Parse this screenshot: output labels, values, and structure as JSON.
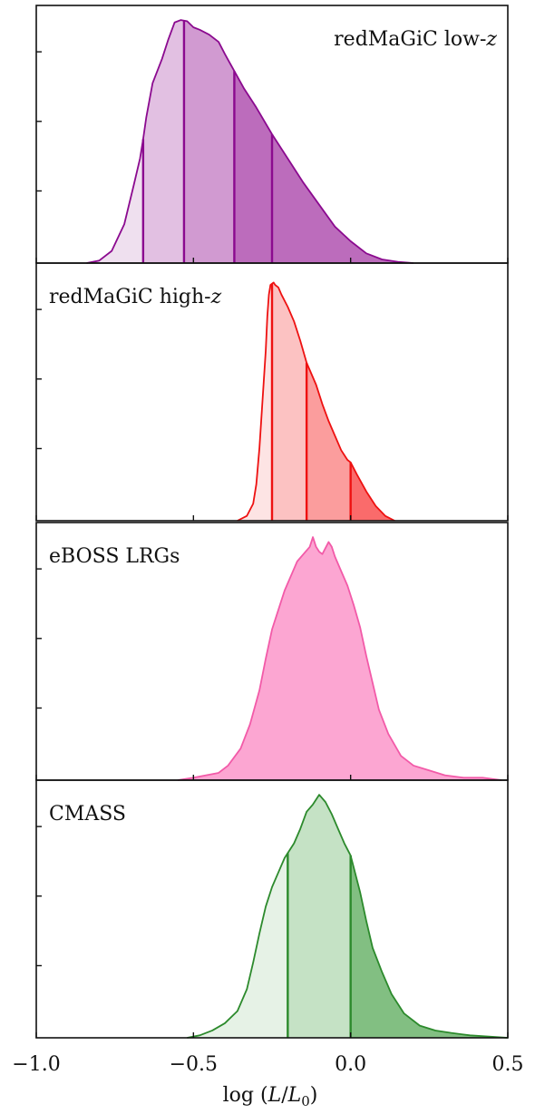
{
  "chart_data": [
    {
      "type": "area",
      "label": "redMaGiC low-z",
      "label_main": "redMaGiC low-",
      "label_var": "z",
      "label_position": "top-right",
      "stroke": "#8b0a8f",
      "fills": [
        "#efe0ef",
        "#e2c0e2",
        "#d19ad1",
        "#bc6cbc"
      ],
      "bin_edges": [
        -0.66,
        -0.53,
        -0.37,
        -0.25
      ],
      "curve": [
        [
          -0.84,
          0.0
        ],
        [
          -0.8,
          0.01
        ],
        [
          -0.76,
          0.05
        ],
        [
          -0.72,
          0.16
        ],
        [
          -0.69,
          0.32
        ],
        [
          -0.67,
          0.43
        ],
        [
          -0.66,
          0.51
        ],
        [
          -0.65,
          0.6
        ],
        [
          -0.63,
          0.74
        ],
        [
          -0.6,
          0.84
        ],
        [
          -0.58,
          0.92
        ],
        [
          -0.56,
          0.99
        ],
        [
          -0.54,
          1.0
        ],
        [
          -0.52,
          0.995
        ],
        [
          -0.5,
          0.97
        ],
        [
          -0.48,
          0.96
        ],
        [
          -0.45,
          0.94
        ],
        [
          -0.42,
          0.91
        ],
        [
          -0.4,
          0.86
        ],
        [
          -0.37,
          0.79
        ],
        [
          -0.34,
          0.72
        ],
        [
          -0.3,
          0.64
        ],
        [
          -0.25,
          0.53
        ],
        [
          -0.2,
          0.43
        ],
        [
          -0.15,
          0.33
        ],
        [
          -0.1,
          0.24
        ],
        [
          -0.05,
          0.15
        ],
        [
          0.0,
          0.09
        ],
        [
          0.05,
          0.04
        ],
        [
          0.1,
          0.015
        ],
        [
          0.15,
          0.005
        ],
        [
          0.2,
          0.0
        ]
      ],
      "ymax": 1.06
    },
    {
      "type": "area",
      "label": "redMaGiC high-z",
      "label_main": "redMaGiC high-",
      "label_var": "z",
      "label_position": "top-left",
      "stroke": "#ee1111",
      "fills": [
        "#fde4e4",
        "#fcc2c2",
        "#fb9d9d",
        "#fa6b6b"
      ],
      "bin_edges": [
        -0.25,
        -0.14,
        0.0
      ],
      "curve": [
        [
          -0.36,
          0.0
        ],
        [
          -0.33,
          0.02
        ],
        [
          -0.31,
          0.07
        ],
        [
          -0.3,
          0.15
        ],
        [
          -0.29,
          0.3
        ],
        [
          -0.28,
          0.5
        ],
        [
          -0.27,
          0.7
        ],
        [
          -0.265,
          0.84
        ],
        [
          -0.26,
          0.93
        ],
        [
          -0.255,
          0.97
        ],
        [
          -0.25,
          0.975
        ],
        [
          -0.245,
          0.98
        ],
        [
          -0.24,
          0.97
        ],
        [
          -0.23,
          0.96
        ],
        [
          -0.22,
          0.93
        ],
        [
          -0.2,
          0.88
        ],
        [
          -0.18,
          0.82
        ],
        [
          -0.16,
          0.74
        ],
        [
          -0.14,
          0.65
        ],
        [
          -0.13,
          0.62
        ],
        [
          -0.11,
          0.56
        ],
        [
          -0.09,
          0.48
        ],
        [
          -0.07,
          0.41
        ],
        [
          -0.05,
          0.35
        ],
        [
          -0.03,
          0.29
        ],
        [
          -0.01,
          0.25
        ],
        [
          0.0,
          0.24
        ],
        [
          0.02,
          0.19
        ],
        [
          0.05,
          0.12
        ],
        [
          0.08,
          0.06
        ],
        [
          0.11,
          0.02
        ],
        [
          0.14,
          0.0
        ]
      ],
      "ymax": 1.06
    },
    {
      "type": "area",
      "label": "eBOSS LRGs",
      "label_position": "top-left",
      "stroke": "#f25aa8",
      "fills": [
        "#fca6d2"
      ],
      "bin_edges": [],
      "curve": [
        [
          -0.55,
          0.0
        ],
        [
          -0.5,
          0.01
        ],
        [
          -0.46,
          0.02
        ],
        [
          -0.42,
          0.03
        ],
        [
          -0.39,
          0.06
        ],
        [
          -0.35,
          0.13
        ],
        [
          -0.32,
          0.23
        ],
        [
          -0.29,
          0.37
        ],
        [
          -0.27,
          0.5
        ],
        [
          -0.25,
          0.62
        ],
        [
          -0.23,
          0.7
        ],
        [
          -0.21,
          0.78
        ],
        [
          -0.19,
          0.84
        ],
        [
          -0.17,
          0.9
        ],
        [
          -0.15,
          0.93
        ],
        [
          -0.13,
          0.96
        ],
        [
          -0.12,
          1.0
        ],
        [
          -0.11,
          0.96
        ],
        [
          -0.1,
          0.94
        ],
        [
          -0.09,
          0.93
        ],
        [
          -0.07,
          0.98
        ],
        [
          -0.06,
          0.96
        ],
        [
          -0.05,
          0.92
        ],
        [
          -0.03,
          0.86
        ],
        [
          -0.01,
          0.8
        ],
        [
          0.01,
          0.72
        ],
        [
          0.03,
          0.63
        ],
        [
          0.05,
          0.51
        ],
        [
          0.07,
          0.4
        ],
        [
          0.09,
          0.29
        ],
        [
          0.12,
          0.19
        ],
        [
          0.16,
          0.1
        ],
        [
          0.2,
          0.06
        ],
        [
          0.25,
          0.04
        ],
        [
          0.3,
          0.02
        ],
        [
          0.36,
          0.01
        ],
        [
          0.42,
          0.01
        ],
        [
          0.48,
          0.0
        ]
      ],
      "ymax": 1.06
    },
    {
      "type": "area",
      "label": "CMASS",
      "label_position": "top-left",
      "stroke": "#2c8a2c",
      "fills": [
        "#e6f2e6",
        "#c5e2c5",
        "#82bf82"
      ],
      "bin_edges": [
        -0.2,
        0.0
      ],
      "curve": [
        [
          -0.52,
          0.0
        ],
        [
          -0.48,
          0.01
        ],
        [
          -0.44,
          0.03
        ],
        [
          -0.4,
          0.06
        ],
        [
          -0.36,
          0.11
        ],
        [
          -0.33,
          0.2
        ],
        [
          -0.31,
          0.31
        ],
        [
          -0.29,
          0.43
        ],
        [
          -0.27,
          0.54
        ],
        [
          -0.25,
          0.62
        ],
        [
          -0.23,
          0.68
        ],
        [
          -0.21,
          0.74
        ],
        [
          -0.2,
          0.76
        ],
        [
          -0.18,
          0.8
        ],
        [
          -0.16,
          0.86
        ],
        [
          -0.14,
          0.93
        ],
        [
          -0.12,
          0.96
        ],
        [
          -0.1,
          1.0
        ],
        [
          -0.08,
          0.97
        ],
        [
          -0.06,
          0.92
        ],
        [
          -0.04,
          0.86
        ],
        [
          -0.02,
          0.8
        ],
        [
          0.0,
          0.75
        ],
        [
          0.01,
          0.7
        ],
        [
          0.03,
          0.6
        ],
        [
          0.05,
          0.48
        ],
        [
          0.07,
          0.37
        ],
        [
          0.1,
          0.27
        ],
        [
          0.13,
          0.18
        ],
        [
          0.17,
          0.1
        ],
        [
          0.22,
          0.05
        ],
        [
          0.27,
          0.03
        ],
        [
          0.32,
          0.02
        ],
        [
          0.38,
          0.01
        ],
        [
          0.44,
          0.005
        ],
        [
          0.5,
          0.0
        ]
      ],
      "ymax": 1.06
    }
  ],
  "x_axis": {
    "xlim": [
      -1.0,
      0.5
    ],
    "ticks": [
      -1.0,
      -0.5,
      0.0,
      0.5
    ],
    "tick_labels": [
      "−1.0",
      "−0.5",
      "0.0",
      "0.5"
    ],
    "label_prefix": "log",
    "label_var": "L",
    "label_var0": "L",
    "label_sub": "0"
  }
}
